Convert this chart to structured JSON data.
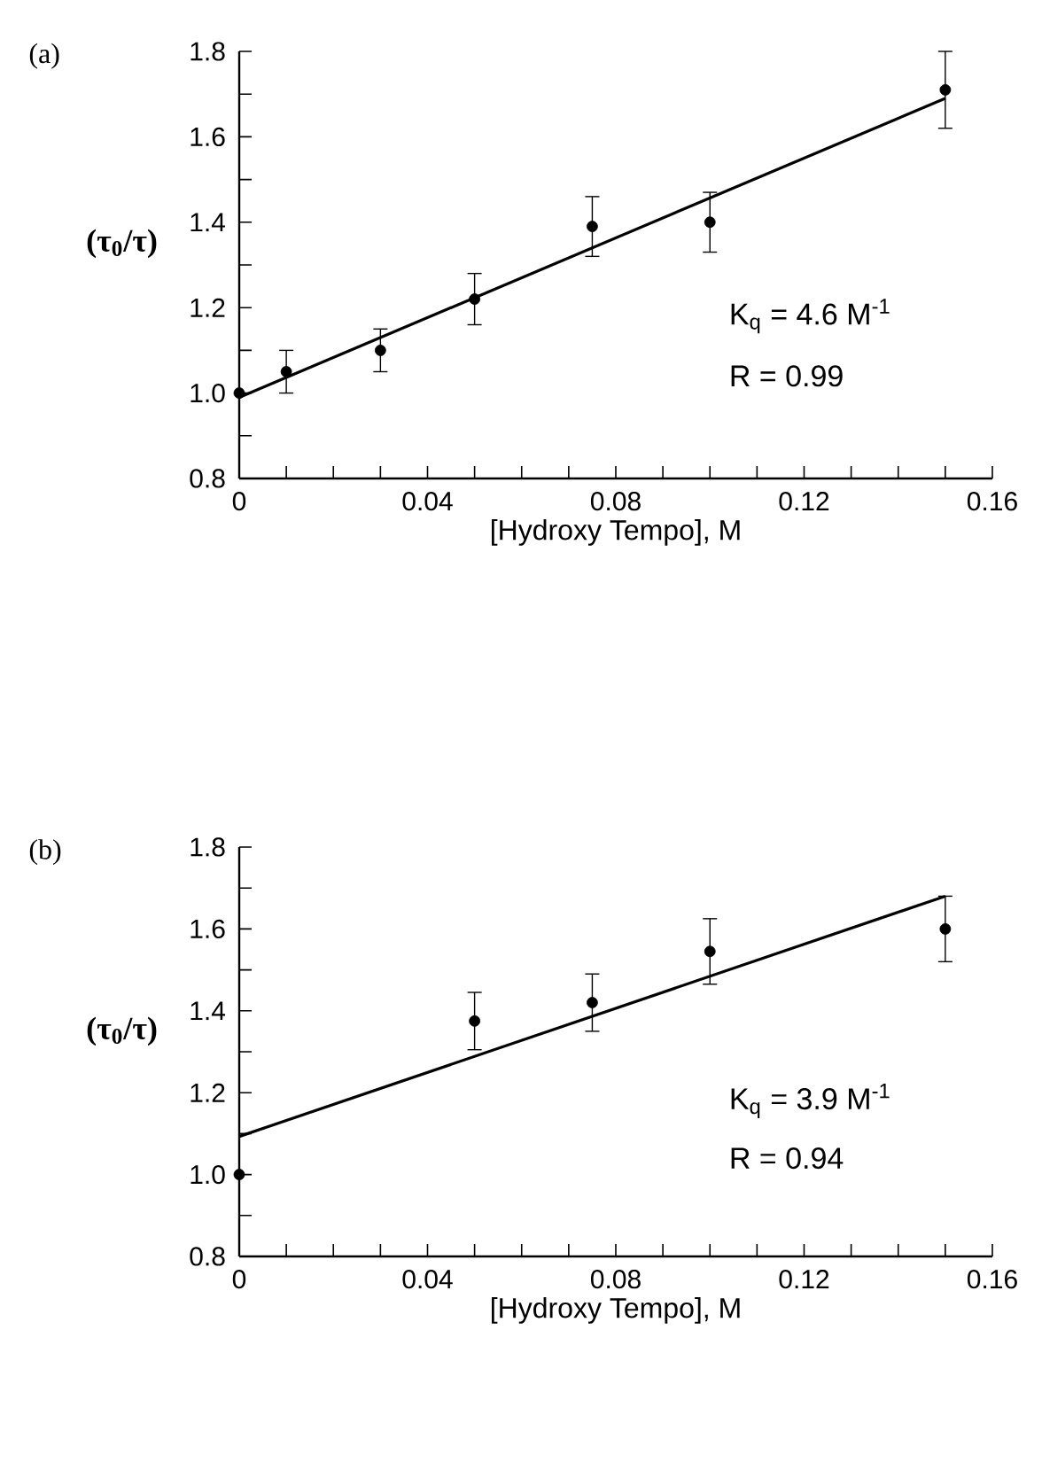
{
  "chart_data": [
    {
      "type": "scatter",
      "xlabel": "[Hydroxy Tempo], M",
      "ylabel": "(τ$_{0}$/τ)",
      "annotations": [
        "(a)",
        "K$_{q}$ = 4.6 M$^{-1}$",
        "R = 0.99"
      ],
      "xlim": [
        0,
        0.16
      ],
      "ylim": [
        0.8,
        1.8
      ],
      "xticks": [
        0,
        0.04,
        0.08,
        0.12,
        0.16
      ],
      "yticks": [
        0.8,
        {
          "value": 1.0,
          "label": "1.0"
        },
        1.2,
        1.4,
        1.6,
        1.8
      ],
      "series": [
        {
          "color": "#000000",
          "marker": "circle",
          "x": [
            0,
            0.01,
            0.03,
            0.05,
            0.075,
            0.1,
            0.15
          ],
          "values": [
            1.0,
            1.05,
            1.1,
            1.22,
            1.39,
            1.4,
            1.71
          ],
          "errors": [
            null,
            0.05,
            0.05,
            0.06,
            0.07,
            0.07,
            0.09
          ]
        },
        {
          "type": "line",
          "color": "#000000",
          "marker": "none",
          "x": [
            0,
            0.15
          ],
          "values": [
            0.99,
            1.69
          ]
        }
      ]
    },
    {
      "type": "scatter",
      "xlabel": "[Hydroxy Tempo], M",
      "ylabel": "(τ$_{0}$/τ)",
      "annotations": [
        "(b)",
        "K$_{q}$ = 3.9 M$^{-1}$",
        "R = 0.94"
      ],
      "xlim": [
        0,
        0.16
      ],
      "ylim": [
        0.8,
        1.8
      ],
      "xticks": [
        0,
        0.04,
        0.08,
        0.12,
        0.16
      ],
      "yticks": [
        0.8,
        {
          "value": 1.0,
          "label": "1.0"
        },
        1.2,
        1.4,
        1.6,
        1.8
      ],
      "series": [
        {
          "color": "#000000",
          "marker": "circle",
          "x": [
            0,
            0.05,
            0.075,
            0.1,
            0.15
          ],
          "values": [
            1.0,
            1.375,
            1.42,
            1.545,
            1.6
          ],
          "errors": [
            null,
            0.07,
            0.07,
            0.08,
            0.08
          ]
        },
        {
          "type": "line",
          "color": "#000000",
          "marker": "none",
          "x": [
            0,
            0.15
          ],
          "values": [
            1.093,
            1.68
          ]
        }
      ]
    }
  ]
}
